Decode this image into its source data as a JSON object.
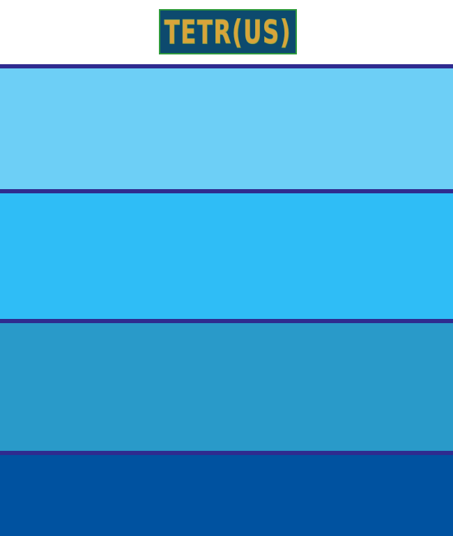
{
  "logo": {
    "text": "TETR(US)",
    "colors": {
      "background": "#0d4a6e",
      "border": "#2e9a3c",
      "text": "#d9a43a"
    }
  },
  "bands": [
    {
      "color": "#6dcff6"
    },
    {
      "color": "#2fbdf6"
    },
    {
      "color": "#299ac9"
    },
    {
      "color": "#0052a0"
    }
  ],
  "divider_color": "#2f2b8f"
}
